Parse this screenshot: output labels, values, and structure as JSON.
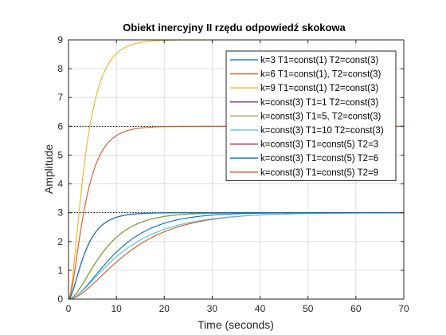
{
  "chart_data": {
    "type": "line",
    "title": "Obiekt inercyjny II rzędu odpowiedź skokowa",
    "xlabel": "Time (seconds)",
    "ylabel": "Amplitude",
    "xlim": [
      0,
      70
    ],
    "ylim": [
      0,
      9
    ],
    "xticks": [
      0,
      10,
      20,
      30,
      40,
      50,
      60,
      70
    ],
    "yticks": [
      0,
      1,
      2,
      3,
      4,
      5,
      6,
      7,
      8,
      9
    ],
    "grid": true,
    "legend_position": "top-right",
    "steady_state_markers": [
      9,
      6,
      3
    ],
    "colors": {
      "axis": "#262626",
      "grid": "#dfdfdf",
      "marker": "#000000"
    },
    "series": [
      {
        "name": "k=3 T1=const(1) T2=const(3)",
        "gain": 3,
        "T1": 1,
        "T2": 3,
        "color": "#0072BD"
      },
      {
        "name": "k=6 T1=const(1), T2=const(3)",
        "gain": 6,
        "T1": 1,
        "T2": 3,
        "color": "#D95319"
      },
      {
        "name": "k=9 T1=const(1) T2=const(3)",
        "gain": 9,
        "T1": 1,
        "T2": 3,
        "color": "#EDB120"
      },
      {
        "name": "k=const(3) T1=1 T2=const(3)",
        "gain": 3,
        "T1": 1,
        "T2": 3,
        "color": "#7E2F8E"
      },
      {
        "name": "k=const(3) T1=5, T2=const(3)",
        "gain": 3,
        "T1": 5,
        "T2": 3,
        "color": "#77AC30"
      },
      {
        "name": "k=const(3) T1=10 T2=const(3)",
        "gain": 3,
        "T1": 10,
        "T2": 3,
        "color": "#4DBEEE"
      },
      {
        "name": "k=const(3) T1=const(5) T2=3",
        "gain": 3,
        "T1": 5,
        "T2": 3,
        "color": "#A2142F"
      },
      {
        "name": "k=const(3) T1=const(5) T2=6",
        "gain": 3,
        "T1": 5,
        "T2": 6,
        "color": "#0072BD"
      },
      {
        "name": "k=const(3) T1=const(5) T2=9",
        "gain": 3,
        "T1": 5,
        "T2": 9,
        "color": "#D95319"
      }
    ]
  }
}
